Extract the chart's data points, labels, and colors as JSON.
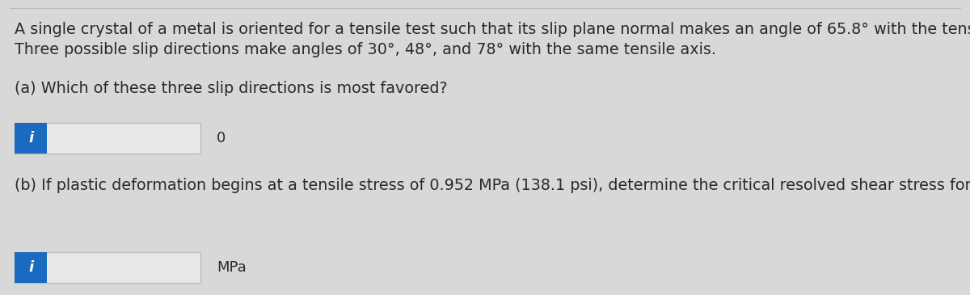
{
  "background_color": "#d8d8d8",
  "inner_bg_color": "#e0e0e0",
  "line1": "A single crystal of a metal is oriented for a tensile test such that its slip plane normal makes an angle of 65.8° with the tensile axis.",
  "line2": "Three possible slip directions make angles of 30°, 48°, and 78° with the same tensile axis.",
  "question_a": "(a) Which of these three slip directions is most favored?",
  "question_b": "(b) If plastic deformation begins at a tensile stress of 0.952 MPa (138.1 psi), determine the critical resolved shear stress for this metal.",
  "label_b_suffix": "MPa",
  "input_box_color": "#e8e8e8",
  "input_border_color": "#bbbbbb",
  "icon_bg_color": "#1a6bbf",
  "icon_text_color": "#ffffff",
  "icon_label": "i",
  "o_label": "0",
  "text_color": "#2a2a2a",
  "mpa_color": "#333333",
  "top_line_color": "#bbbbbb",
  "text_fontsize": 13.8,
  "icon_fontsize": 13,
  "small_fontsize": 13
}
